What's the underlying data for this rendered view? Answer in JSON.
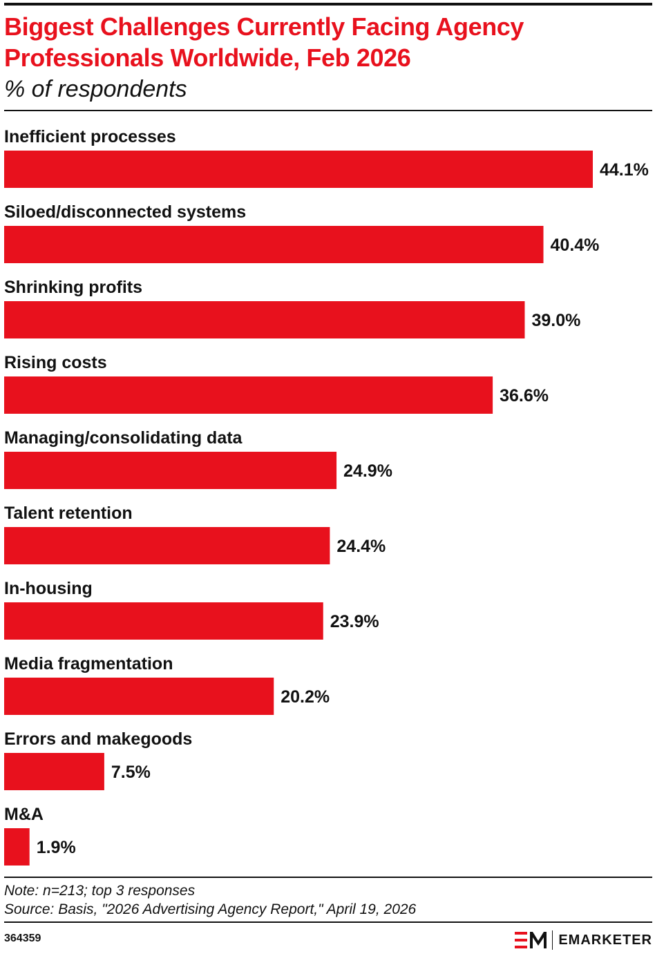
{
  "header": {
    "title": "Biggest Challenges Currently Facing Agency Professionals Worldwide, Feb 2026",
    "subtitle": "% of respondents"
  },
  "chart_data": {
    "type": "bar",
    "orientation": "horizontal",
    "title": "Biggest Challenges Currently Facing Agency Professionals Worldwide, Feb 2026",
    "subtitle": "% of respondents",
    "categories": [
      "Inefficient processes",
      "Siloed/disconnected systems",
      "Shrinking profits",
      "Rising costs",
      "Managing/consolidating data",
      "Talent retention",
      "In-housing",
      "Media fragmentation",
      "Errors and makegoods",
      "M&A"
    ],
    "values": [
      44.1,
      40.4,
      39.0,
      36.6,
      24.9,
      24.4,
      23.9,
      20.2,
      7.5,
      1.9
    ],
    "value_labels": [
      "44.1%",
      "40.4%",
      "39.0%",
      "36.6%",
      "24.9%",
      "24.4%",
      "23.9%",
      "20.2%",
      "7.5%",
      "1.9%"
    ],
    "xlim": [
      0,
      44.1
    ],
    "grid": false,
    "legend": "none",
    "bar_color": "#e8111d"
  },
  "footer": {
    "note": "Note: n=213; top 3 responses",
    "source": "Source: Basis, \"2026 Advertising Agency Report,\" April 19, 2026",
    "chart_id": "364359",
    "brand": "EMARKETER",
    "logo_icon": "em-logo-icon"
  },
  "colors": {
    "title": "#e8111d",
    "bar": "#e8111d",
    "text": "#111111"
  }
}
